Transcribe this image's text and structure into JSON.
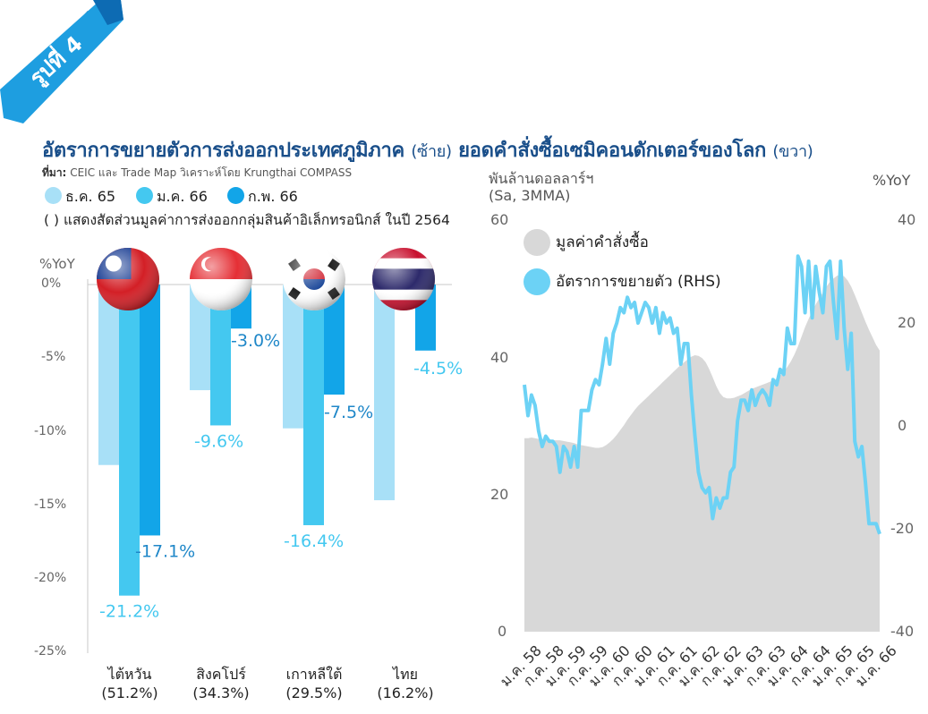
{
  "ribbon": {
    "label": "รูปที่ 4"
  },
  "title": {
    "left_main": "อัตราการขยายตัวการส่งออกประเทศภูมิภาค",
    "left_paren": "(ซ้าย)",
    "right_main": "ยอดคำสั่งซื้อเซมิคอนดักเตอร์ของโลก",
    "right_paren": "(ขวา)"
  },
  "source": {
    "label": "ที่มา:",
    "text": "CEIC และ Trade Map วิเคราะห์โดย Krungthai COMPASS"
  },
  "colors": {
    "dec": "#a8e0f7",
    "jan": "#44c8f0",
    "feb": "#12a5e8",
    "area": "#d8d8d8",
    "line": "#6cd2f5",
    "title": "#1a4f8a"
  },
  "chart_data": [
    {
      "type": "bar",
      "legend": [
        {
          "name": "ธ.ค. 65",
          "color": "#a8e0f7"
        },
        {
          "name": "ม.ค. 66",
          "color": "#44c8f0"
        },
        {
          "name": "ก.พ. 66",
          "color": "#12a5e8"
        }
      ],
      "note": "( ) แสดงสัดส่วนมูลค่าการส่งออกกลุ่มสินค้าอิเล็กทรอนิกส์ ในปี 2564",
      "ylabel": "%YoY",
      "ylim": [
        -25,
        0
      ],
      "yticks": [
        "0%",
        "-5%",
        "-10%",
        "-15%",
        "-20%",
        "-25%"
      ],
      "categories": [
        {
          "name": "ไต้หวัน",
          "share": "(51.2%)"
        },
        {
          "name": "สิงคโปร์",
          "share": "(34.3%)"
        },
        {
          "name": "เกาหลีใต้",
          "share": "(29.5%)"
        },
        {
          "name": "ไทย",
          "share": "(16.2%)"
        }
      ],
      "series": [
        {
          "name": "ธ.ค. 65",
          "values": [
            -12.3,
            -7.2,
            -9.8,
            -14.7
          ]
        },
        {
          "name": "ม.ค. 66",
          "values": [
            -21.2,
            -9.6,
            -16.4,
            -1.5
          ]
        },
        {
          "name": "ก.พ. 66",
          "values": [
            -17.1,
            -3.0,
            -7.5,
            -4.5
          ]
        }
      ],
      "data_labels": {
        "taiwan_jan": "-21.2%",
        "taiwan_feb": "-17.1%",
        "singapore_jan": "-9.6%",
        "singapore_feb": "-3.0%",
        "korea_jan": "-16.4%",
        "korea_feb": "-7.5%",
        "thailand_feb": "-4.5%"
      }
    },
    {
      "type": "area",
      "ylabel_left": "พันล้านดอลลาร์ฯ",
      "ylabel_left_sub": "(Sa, 3MMA)",
      "ylabel_right": "%YoY",
      "ylim_left": [
        0,
        60
      ],
      "ylim_right": [
        -40,
        40
      ],
      "yticks_left": [
        "60",
        "40",
        "20",
        "0"
      ],
      "yticks_right": [
        "40",
        "20",
        "0",
        "-20",
        "-40"
      ],
      "x_tick_labels": [
        "ม.ค. 58",
        "ก.ค. 58",
        "ม.ค. 59",
        "ก.ค. 59",
        "ม.ค. 60",
        "ก.ค. 60",
        "ม.ค. 61",
        "ก.ค. 61",
        "ม.ค. 62",
        "ก.ค. 62",
        "ม.ค. 63",
        "ก.ค. 63",
        "ม.ค. 64",
        "ก.ค. 64",
        "ม.ค. 65",
        "ก.ค. 65",
        "ม.ค. 66"
      ],
      "series": [
        {
          "name": "มูลค่าคำสั่งซื้อ",
          "axis": "left",
          "values": [
            28.2,
            28.2,
            28.3,
            28.2,
            28.1,
            28.1,
            28.0,
            28.0,
            27.9,
            27.9,
            27.9,
            27.8,
            27.7,
            27.6,
            27.5,
            27.3,
            27.2,
            27.1,
            27.0,
            26.9,
            26.8,
            26.8,
            26.9,
            27.2,
            27.6,
            28.1,
            28.7,
            29.4,
            30.1,
            30.9,
            31.6,
            32.3,
            32.9,
            33.4,
            33.9,
            34.4,
            34.9,
            35.4,
            35.9,
            36.4,
            36.9,
            37.4,
            37.9,
            38.4,
            38.9,
            39.3,
            39.7,
            40.1,
            40.3,
            40.2,
            39.9,
            39.3,
            38.3,
            37.1,
            35.8,
            34.8,
            34.2,
            34.0,
            34.0,
            34.1,
            34.3,
            34.5,
            34.8,
            35.1,
            35.4,
            35.6,
            35.8,
            36.0,
            36.2,
            36.4,
            36.6,
            36.9,
            37.3,
            37.9,
            38.6,
            39.4,
            40.4,
            41.6,
            43.0,
            44.4,
            45.6,
            46.7,
            47.7,
            48.6,
            49.4,
            50.3,
            51.0,
            51.5,
            51.9,
            52.0,
            51.8,
            51.2,
            50.3,
            49.1,
            47.8,
            46.5,
            45.2,
            44.0,
            42.9,
            41.8,
            41.0
          ]
        },
        {
          "name": "อัตราการขยายตัว (RHS)",
          "axis": "right",
          "values": [
            8.0,
            2.0,
            6.0,
            4.0,
            -1.0,
            -4.0,
            -2.0,
            -3.0,
            -3.0,
            -4.0,
            -9.0,
            -4.0,
            -5.0,
            -8.0,
            -4.0,
            -8.0,
            3.0,
            3.0,
            3.0,
            7.0,
            9.0,
            8.0,
            12.0,
            17.0,
            12.0,
            18.0,
            20.0,
            23.0,
            22.0,
            25.0,
            23.0,
            24.0,
            20.0,
            22.0,
            24.0,
            23.0,
            20.0,
            23.0,
            18.0,
            22.0,
            20.0,
            21.0,
            18.0,
            19.0,
            12.0,
            16.0,
            16.0,
            6.0,
            -2.0,
            -9.0,
            -12.0,
            -13.0,
            -12.0,
            -18.0,
            -14.0,
            -16.0,
            -14.0,
            -14.0,
            -9.0,
            -8.0,
            1.0,
            5.0,
            5.0,
            3.0,
            7.0,
            4.0,
            6.0,
            7.0,
            6.0,
            4.0,
            9.0,
            8.0,
            11.0,
            10.0,
            19.0,
            16.0,
            16.0,
            33.0,
            31.0,
            22.0,
            32.0,
            21.0,
            31.0,
            26.0,
            22.0,
            31.0,
            32.0,
            24.0,
            17.0,
            32.0,
            19.0,
            11.0,
            18.0,
            -3.0,
            -6.0,
            -4.0,
            -11.0,
            -19.0,
            -19.0,
            -19.0,
            -21.0
          ]
        }
      ]
    }
  ]
}
